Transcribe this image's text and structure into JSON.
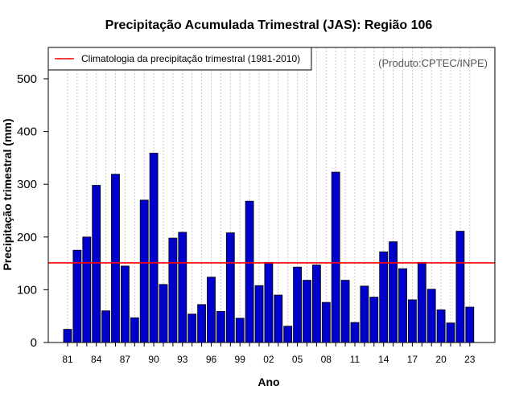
{
  "chart_data": {
    "type": "bar",
    "title": "Precipitação Acumulada Trimestral (JAS): Região 106",
    "xlabel": "Ano",
    "ylabel": "Precipitação trimestral (mm)",
    "source_note": "(Produto:CPTEC/INPE)",
    "ylim": [
      0,
      560
    ],
    "yticks": [
      0,
      100,
      200,
      300,
      400,
      500
    ],
    "categories": [
      "81",
      "82",
      "83",
      "84",
      "85",
      "86",
      "87",
      "88",
      "89",
      "90",
      "91",
      "92",
      "93",
      "94",
      "95",
      "96",
      "97",
      "98",
      "99",
      "00",
      "01",
      "02",
      "03",
      "04",
      "05",
      "06",
      "07",
      "08",
      "09",
      "10",
      "11",
      "12",
      "13",
      "14",
      "15",
      "16",
      "17",
      "18",
      "19",
      "20",
      "21",
      "22",
      "23"
    ],
    "xtick_labels": [
      "81",
      "84",
      "87",
      "90",
      "93",
      "96",
      "99",
      "02",
      "05",
      "08",
      "11",
      "14",
      "17",
      "20",
      "23"
    ],
    "values": [
      25,
      175,
      200,
      298,
      60,
      319,
      145,
      47,
      270,
      359,
      110,
      198,
      209,
      54,
      72,
      124,
      59,
      208,
      46,
      268,
      108,
      152,
      90,
      31,
      143,
      118,
      147,
      76,
      323,
      118,
      38,
      107,
      86,
      172,
      191,
      140,
      81,
      152,
      101,
      62,
      37,
      211,
      67
    ],
    "reference_line": {
      "label": "Climatologia da precipitação trimestral (1981-2010)",
      "value": 151,
      "color": "#ff0000"
    },
    "legend_position": "top-left",
    "bar_color": "#0000cd",
    "grid": "vertical dotted",
    "grid_color": "#c8c8c8"
  }
}
